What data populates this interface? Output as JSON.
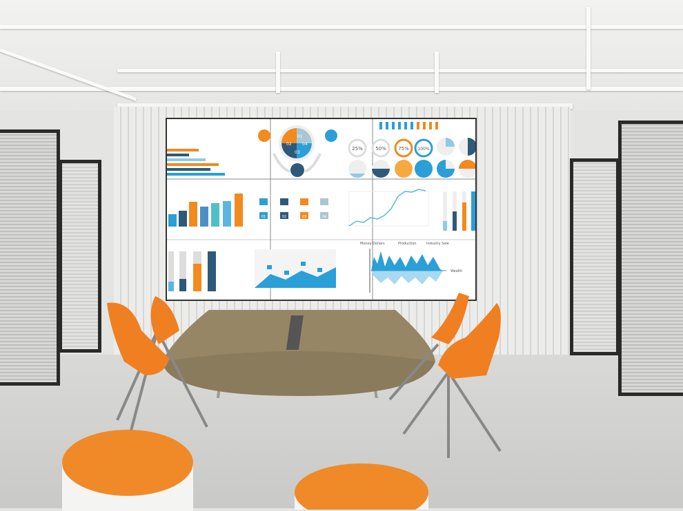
{
  "scene": {
    "description_colors": {
      "accent_orange": "#f28a1e",
      "accent_blue": "#2a9fd8",
      "dark_blue": "#2d5a78",
      "light_blue": "#8ccbe6"
    }
  },
  "screen": {
    "percent_rings": [
      "25%",
      "50%",
      "75%",
      "100%"
    ],
    "pie_segments": [
      "01",
      "02",
      "03",
      "04"
    ],
    "steps": [
      "01",
      "02",
      "03",
      "04"
    ],
    "wave_chart": {
      "legend_left": "Money Dollars",
      "legend_mid": "Production",
      "legend_right": "Industry Sale",
      "axis_label": "Wealth"
    }
  }
}
